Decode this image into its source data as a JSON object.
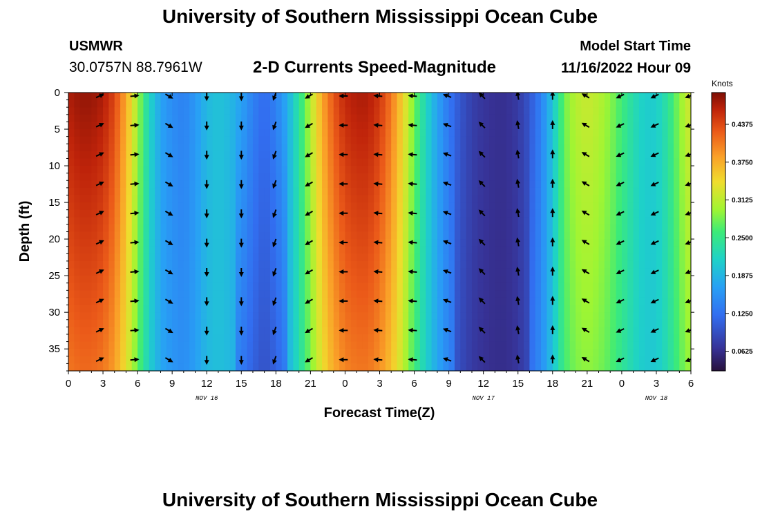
{
  "header": {
    "title": "University of Southern Mississippi Ocean Cube",
    "station": "USMWR",
    "coordinates": "30.0757N  88.7961W",
    "model_start_label": "Model Start Time",
    "model_start_value": "11/16/2022 Hour 09"
  },
  "footer": {
    "title": "University of Southern Mississippi Ocean Cube"
  },
  "chart_data": {
    "type": "heatmap",
    "title": "2-D Currents Speed-Magnitude",
    "xlabel": "Forecast Time(Z)",
    "ylabel": "Depth (ft)",
    "x_range_hours": [
      0,
      54
    ],
    "y_range_ft": [
      0,
      38
    ],
    "x_ticks": [
      "0",
      "3",
      "6",
      "9",
      "12",
      "15",
      "18",
      "21",
      "0",
      "3",
      "6",
      "9",
      "12",
      "15",
      "18",
      "21",
      "0",
      "3",
      "6"
    ],
    "date_labels": [
      {
        "text": "NOV 16",
        "hour": 12
      },
      {
        "text": "NOV 17",
        "hour": 36
      },
      {
        "text": "NOV 18",
        "hour": 51
      }
    ],
    "y_ticks": [
      0,
      5,
      10,
      15,
      20,
      25,
      30,
      35
    ],
    "colorbar": {
      "title": "Knots",
      "min": 0.03,
      "max": 0.49,
      "ticks": [
        "0.4375",
        "0.3750",
        "0.3125",
        "0.2500",
        "0.1875",
        "0.1250",
        "0.0625"
      ]
    },
    "speed_profile_surface": {
      "hours": [
        0,
        1,
        2,
        3,
        4,
        5,
        6,
        7,
        8,
        9,
        10,
        11,
        12,
        13,
        14,
        15,
        16,
        17,
        18,
        19,
        20,
        21,
        22,
        23,
        24,
        25,
        26,
        27,
        28,
        29,
        30,
        31,
        32,
        33,
        34,
        35,
        36,
        37,
        38,
        39,
        40,
        41,
        42,
        43,
        44,
        45,
        46,
        47,
        48,
        49,
        50,
        51,
        52,
        53,
        54
      ],
      "knots": [
        0.47,
        0.48,
        0.48,
        0.47,
        0.44,
        0.38,
        0.3,
        0.22,
        0.17,
        0.15,
        0.14,
        0.16,
        0.19,
        0.2,
        0.19,
        0.17,
        0.14,
        0.12,
        0.14,
        0.18,
        0.24,
        0.31,
        0.38,
        0.43,
        0.46,
        0.47,
        0.47,
        0.45,
        0.41,
        0.35,
        0.28,
        0.22,
        0.17,
        0.13,
        0.1,
        0.08,
        0.07,
        0.065,
        0.065,
        0.075,
        0.1,
        0.14,
        0.2,
        0.28,
        0.31,
        0.32,
        0.31,
        0.29,
        0.26,
        0.23,
        0.21,
        0.21,
        0.24,
        0.29,
        0.33
      ]
    },
    "arrow_grid": {
      "hours": [
        2.7,
        5.7,
        8.7,
        12,
        15,
        17.9,
        20.9,
        23.9,
        26.9,
        29.9,
        32.9,
        35.9,
        39,
        42,
        44.9,
        47.9,
        50.9,
        53.9
      ],
      "depths_ft": [
        0,
        4,
        8,
        12,
        16,
        20,
        24,
        28,
        32,
        36
      ],
      "direction_deg": [
        -25,
        -5,
        30,
        90,
        90,
        110,
        150,
        180,
        185,
        185,
        200,
        225,
        260,
        270,
        210,
        155,
        155,
        160
      ]
    }
  }
}
